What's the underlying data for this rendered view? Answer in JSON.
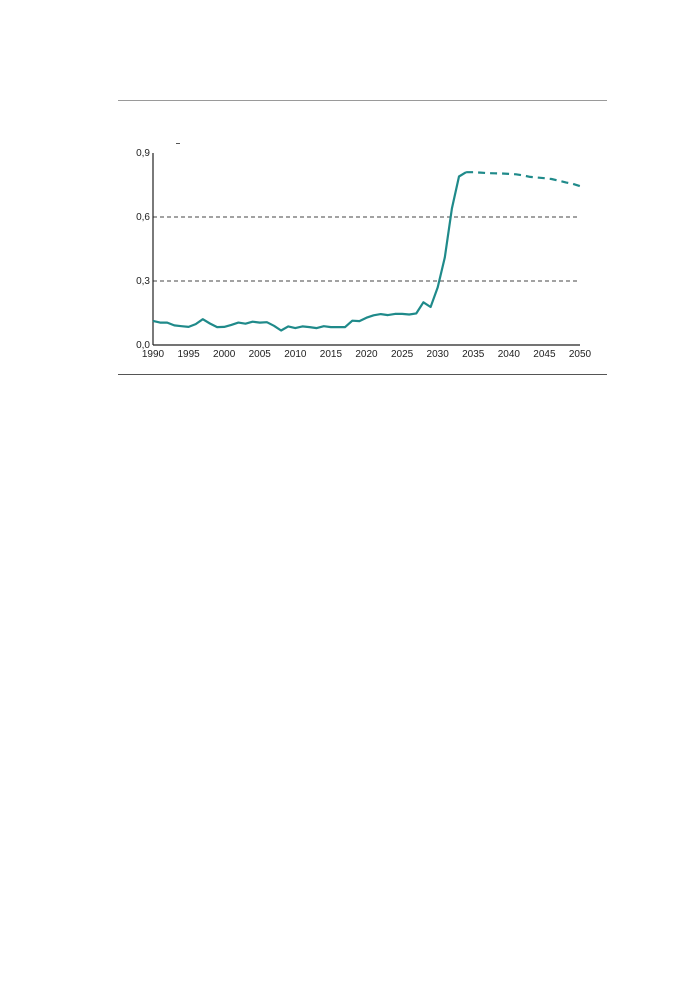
{
  "chart_data": {
    "type": "line",
    "title": "",
    "xlabel": "",
    "ylabel": "",
    "xlim": [
      1990,
      2050
    ],
    "ylim": [
      0,
      0.9
    ],
    "x_ticks": [
      "1990",
      "1995",
      "2000",
      "2005",
      "2010",
      "2015",
      "2020",
      "2025",
      "2030",
      "2035",
      "2040",
      "2045",
      "2050"
    ],
    "y_ticks": [
      "0,0",
      "0,3",
      "0,6",
      "0,9"
    ],
    "grid": "horizontal dashed at 0,3 and 0,6",
    "colors": {
      "line": "#1f8a8a",
      "grid": "#444444",
      "axis": "#222222"
    },
    "series": [
      {
        "style": "solid",
        "x": [
          1990,
          1991,
          1992,
          1993,
          1994,
          1995,
          1996,
          1997,
          1998,
          1999,
          2000,
          2001,
          2002,
          2003,
          2004,
          2005,
          2006,
          2007,
          2008,
          2009,
          2010,
          2011,
          2012,
          2013,
          2014,
          2015,
          2016,
          2017,
          2018,
          2019,
          2020,
          2021,
          2022,
          2023,
          2024,
          2025,
          2026,
          2027,
          2028,
          2029,
          2030,
          2031,
          2032,
          2033,
          2034
        ],
        "values": [
          0.113,
          0.105,
          0.105,
          0.092,
          0.088,
          0.085,
          0.098,
          0.121,
          0.101,
          0.084,
          0.085,
          0.094,
          0.105,
          0.1,
          0.109,
          0.105,
          0.107,
          0.09,
          0.068,
          0.087,
          0.079,
          0.087,
          0.084,
          0.079,
          0.088,
          0.084,
          0.084,
          0.084,
          0.114,
          0.112,
          0.128,
          0.139,
          0.145,
          0.14,
          0.146,
          0.146,
          0.143,
          0.148,
          0.2,
          0.178,
          0.27,
          0.41,
          0.64,
          0.79,
          0.81
        ]
      },
      {
        "style": "dashed",
        "x": [
          2034,
          2035,
          2036,
          2037,
          2038,
          2039,
          2040,
          2041,
          2042,
          2043,
          2044,
          2045,
          2046,
          2047,
          2048,
          2049,
          2050
        ],
        "values": [
          0.81,
          0.81,
          0.808,
          0.806,
          0.805,
          0.804,
          0.802,
          0.8,
          0.795,
          0.788,
          0.785,
          0.782,
          0.778,
          0.77,
          0.762,
          0.755,
          0.745
        ]
      }
    ]
  }
}
